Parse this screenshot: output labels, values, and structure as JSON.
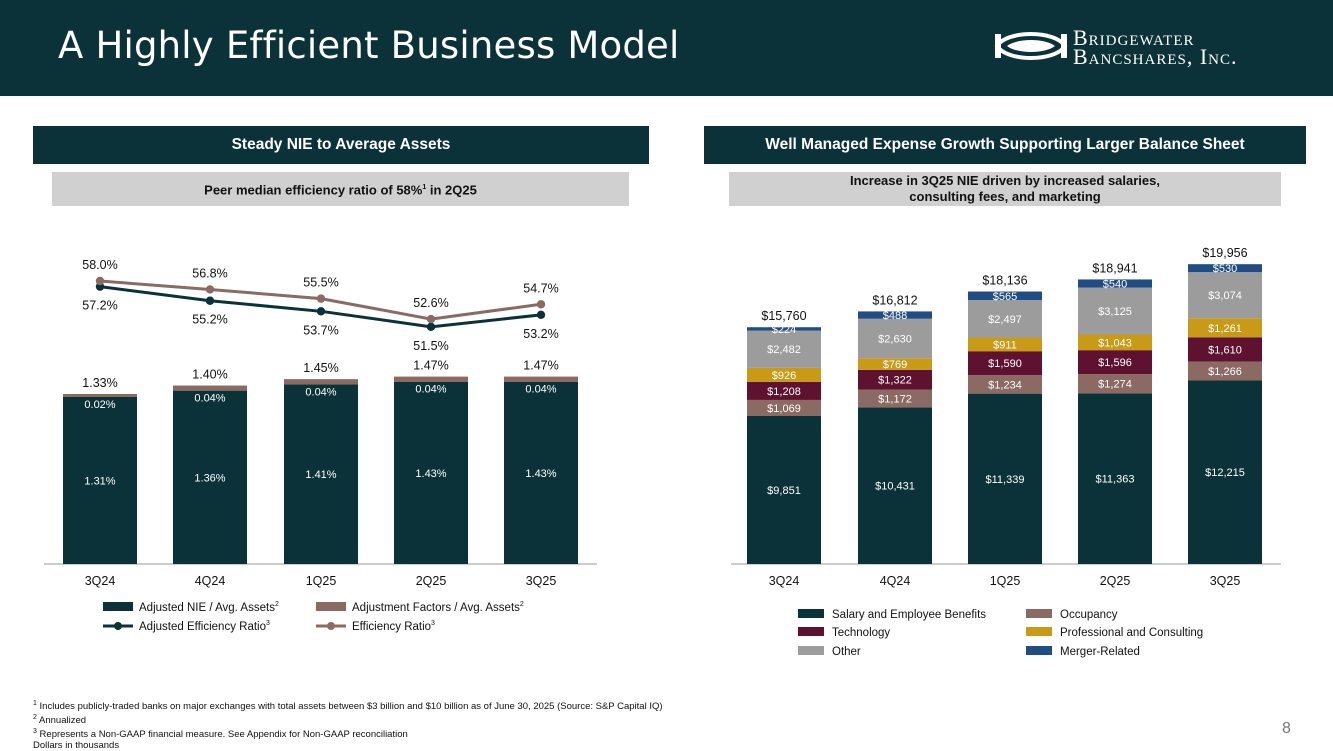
{
  "page": {
    "title": "A Highly Efficient Business Model",
    "logo_line1": "Bridgewater",
    "logo_line2": "Bancshares, Inc.",
    "page_number": "8"
  },
  "left": {
    "header": "Steady NIE to Average Assets",
    "subheader": "Peer median efficiency ratio of 58%",
    "subheader_sup": "1",
    "subheader_suffix": " in 2Q25"
  },
  "right": {
    "header": "Well Managed Expense Growth Supporting Larger Balance Sheet",
    "subheader_line1": "Increase in 3Q25 NIE driven by increased salaries,",
    "subheader_line2": "consulting fees, and marketing"
  },
  "footnotes": [
    {
      "sup": "1",
      "text": " Includes publicly-traded banks on major exchanges with total assets between $3 billion and $10 billion as of June 30, 2025 (Source: S&P Capital IQ)"
    },
    {
      "sup": "2",
      "text": " Annualized"
    },
    {
      "sup": "3",
      "text": " Represents a Non-GAAP financial measure. See Appendix for Non-GAAP reconciliation"
    },
    {
      "sup": "",
      "text": "Dollars in thousands"
    }
  ],
  "chart_data": [
    {
      "type": "bar",
      "stacked": true,
      "categories": [
        "3Q24",
        "4Q24",
        "1Q25",
        "2Q25",
        "3Q25"
      ],
      "series": [
        {
          "name": "Adjusted NIE / Avg. Assets",
          "legend_sup": "2",
          "color": "#0b3239",
          "values": [
            1.31,
            1.36,
            1.41,
            1.43,
            1.43
          ],
          "labels": [
            "1.31%",
            "1.36%",
            "1.41%",
            "1.43%",
            "1.43%"
          ]
        },
        {
          "name": "Adjustment Factors / Avg. Assets",
          "legend_sup": "2",
          "color": "#8a6a62",
          "values": [
            0.02,
            0.04,
            0.04,
            0.04,
            0.04
          ],
          "labels": [
            "0.02%",
            "0.04%",
            "0.04%",
            "0.04%",
            "0.04%"
          ]
        }
      ],
      "totals": [
        "1.33%",
        "1.40%",
        "1.45%",
        "1.47%",
        "1.47%"
      ],
      "lines": [
        {
          "name": "Adjusted Efficiency Ratio",
          "legend_sup": "3",
          "color": "#0b3239",
          "values": [
            57.2,
            55.2,
            53.7,
            51.5,
            53.2
          ],
          "labels": [
            "57.2%",
            "55.2%",
            "53.7%",
            "51.5%",
            "53.2%"
          ],
          "label_position": "below"
        },
        {
          "name": "Efficiency Ratio",
          "legend_sup": "3",
          "color": "#8a6a62",
          "values": [
            58.0,
            56.8,
            55.5,
            52.6,
            54.7
          ],
          "labels": [
            "58.0%",
            "56.8%",
            "55.5%",
            "52.6%",
            "54.7%"
          ],
          "label_position": "above"
        }
      ],
      "legend": "bottom",
      "grid": false
    },
    {
      "type": "bar",
      "stacked": true,
      "categories": [
        "3Q24",
        "4Q24",
        "1Q25",
        "2Q25",
        "3Q25"
      ],
      "series": [
        {
          "name": "Salary and Employee Benefits",
          "color": "#0b3239",
          "values": [
            9851,
            10431,
            11339,
            11363,
            12215
          ]
        },
        {
          "name": "Occupancy",
          "color": "#8a6a62",
          "values": [
            1069,
            1172,
            1234,
            1274,
            1266
          ]
        },
        {
          "name": "Technology",
          "color": "#5e1230",
          "values": [
            1208,
            1322,
            1590,
            1596,
            1610
          ]
        },
        {
          "name": "Professional and Consulting",
          "color": "#c99a16",
          "values": [
            926,
            769,
            911,
            1043,
            1261
          ]
        },
        {
          "name": "Other",
          "color": "#9c9c9c",
          "values": [
            2482,
            2630,
            2497,
            3125,
            3074
          ]
        },
        {
          "name": "Merger-Related",
          "color": "#1f4d84",
          "values": [
            224,
            488,
            565,
            540,
            530
          ]
        }
      ],
      "totals": [
        15760,
        16812,
        18136,
        18941,
        19956
      ],
      "legend": "bottom",
      "grid": false
    }
  ]
}
